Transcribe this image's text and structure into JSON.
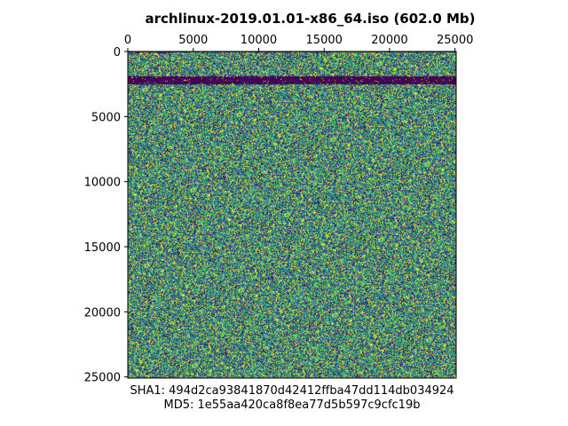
{
  "chart_data": {
    "type": "heatmap",
    "title": "archlinux-2019.01.01-x86_64.iso (602.0 Mb)",
    "x_axis": {
      "position": "top",
      "range": [
        0,
        25088
      ],
      "ticks": [
        "0",
        "5000",
        "10000",
        "15000",
        "20000",
        "25000"
      ],
      "tick_values": [
        0,
        5000,
        10000,
        15000,
        20000,
        25000
      ]
    },
    "y_axis": {
      "inverted": true,
      "range": [
        0,
        25088
      ],
      "ticks": [
        "0",
        "5000",
        "10000",
        "15000",
        "20000",
        "25000"
      ],
      "tick_values": [
        0,
        5000,
        10000,
        15000,
        20000,
        25000
      ]
    },
    "colormap": "viridis",
    "colors": [
      "#440154",
      "#3b528b",
      "#21918c",
      "#5ec962",
      "#fde725"
    ],
    "pattern": "random byte noise",
    "low_bands": [
      {
        "y_start": 1900,
        "y_end": 2500
      },
      {
        "y_start": 0,
        "y_end": 60
      }
    ],
    "caption_lines": [
      "SHA1: 494d2ca93841870d42412ffba47dd114db034924",
      "MD5: 1e55aa420ca8f8ea77d5b597c9cfc19b"
    ],
    "grid": false
  }
}
